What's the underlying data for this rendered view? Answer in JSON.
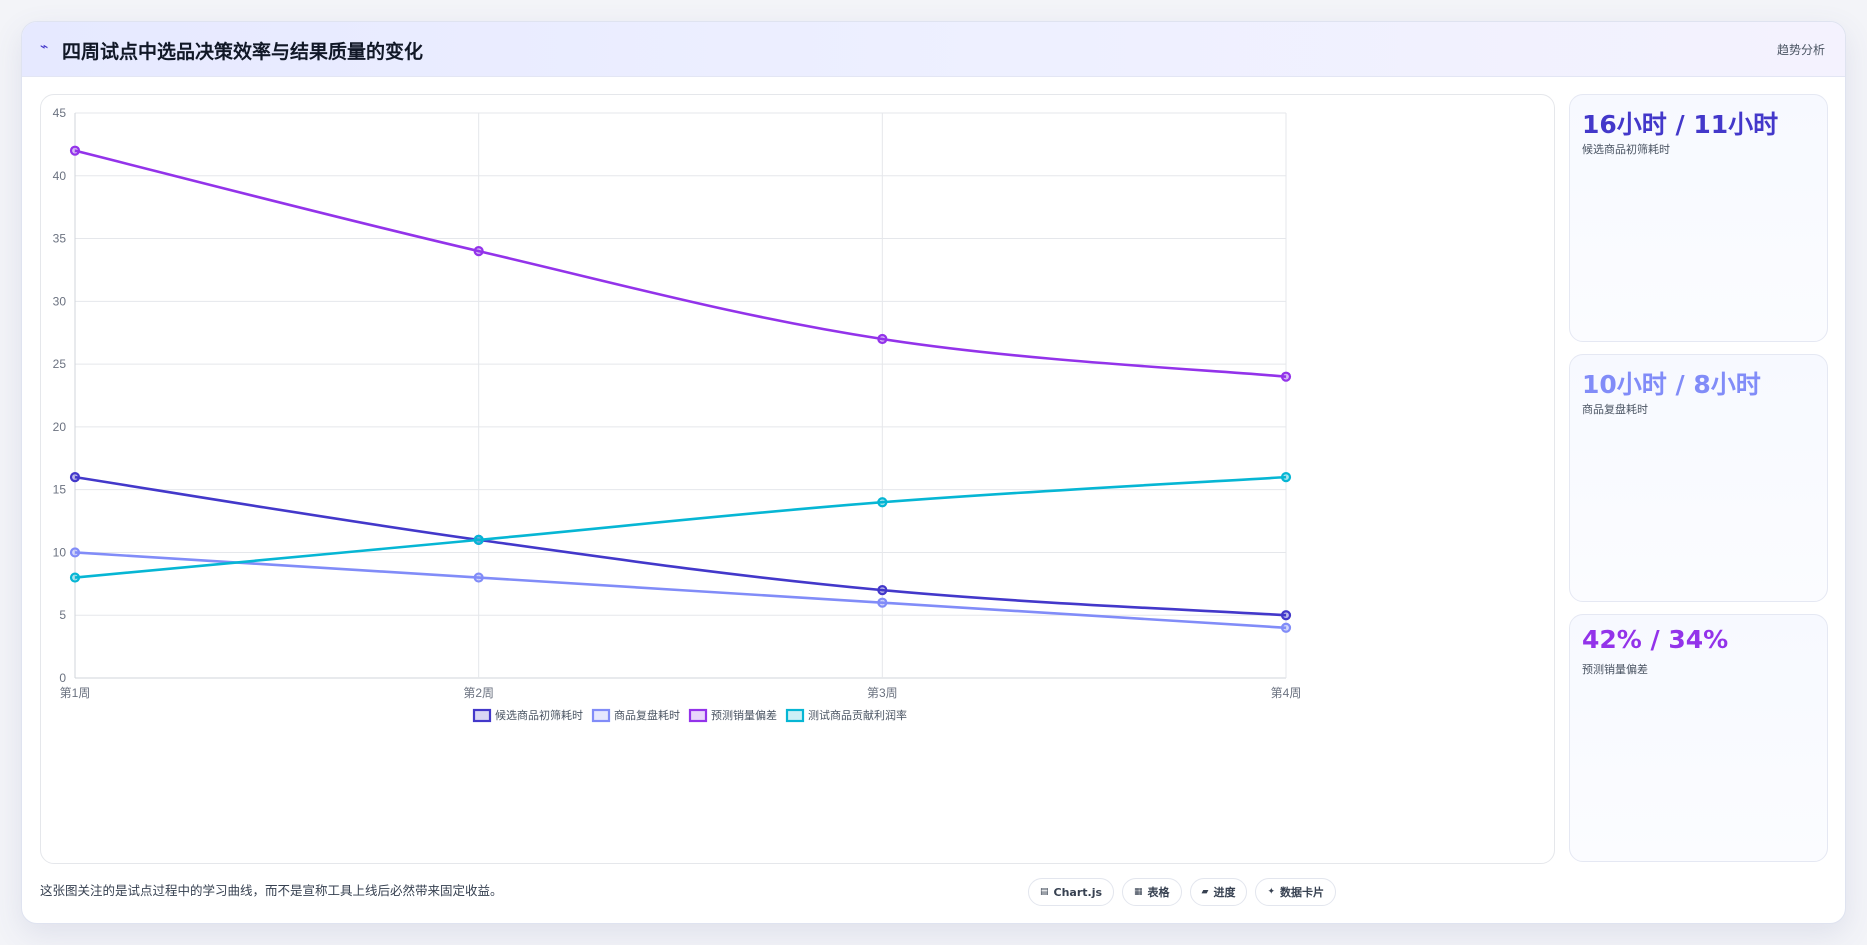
{
  "header": {
    "icon": "trend-icon",
    "title": "四周试点中选品决策效率与结果质量的变化",
    "badge": "趋势分析"
  },
  "chart_data": {
    "type": "line",
    "categories": [
      "第1周",
      "第2周",
      "第3周",
      "第4周"
    ],
    "ylim": [
      0,
      45
    ],
    "yticks": [
      0,
      5,
      10,
      15,
      20,
      25,
      30,
      35,
      40,
      45
    ],
    "grid": true,
    "legend_position": "bottom",
    "series": [
      {
        "name": "候选商品初筛耗时",
        "values": [
          16,
          11,
          7,
          5
        ],
        "color": "#4338ca"
      },
      {
        "name": "商品复盘耗时",
        "values": [
          10,
          8,
          6,
          4
        ],
        "color": "#818cf8"
      },
      {
        "name": "预测销量偏差",
        "values": [
          42,
          34,
          27,
          24
        ],
        "color": "#9333ea"
      },
      {
        "name": "测试商品贡献利润率",
        "values": [
          8,
          11,
          14,
          16
        ],
        "color": "#06b6d4"
      }
    ]
  },
  "kpis": [
    {
      "value": "16小时 / 11小时",
      "label": "候选商品初筛耗时",
      "color": "#4338ca"
    },
    {
      "value": "10小时 / 8小时",
      "label": "商品复盘耗时",
      "color": "#818cf8"
    },
    {
      "value": "42% / 34%",
      "label": "预测销量偏差",
      "color": "#9333ea"
    }
  ],
  "footer": {
    "note": "这张图关注的是试点过程中的学习曲线，而不是宣称工具上线后必然带来固定收益。",
    "chips": [
      {
        "icon": "chart-icon",
        "glyph": "▤",
        "label": "Chart.js"
      },
      {
        "icon": "table-icon",
        "glyph": "▦",
        "label": "表格"
      },
      {
        "icon": "progress-icon",
        "glyph": "▰",
        "label": "进度"
      },
      {
        "icon": "sparkle-icon",
        "glyph": "✦",
        "label": "数据卡片"
      }
    ]
  }
}
